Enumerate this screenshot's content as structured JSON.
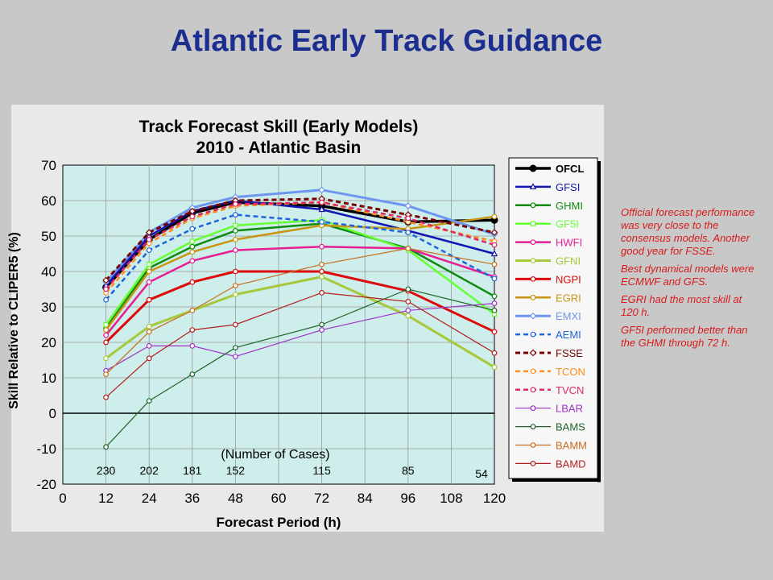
{
  "slide_title": "Atlantic Early Track Guidance",
  "notes": [
    "Official forecast performance was very close to the consensus models. Another  good year for FSSE.",
    "Best dynamical models were ECMWF and GFS.",
    "EGRI had the most skill at 120 h.",
    "GF5I performed better than the GHMI through 72 h."
  ],
  "chart_data": {
    "type": "line",
    "title": "Track Forecast Skill (Early Models)",
    "subtitle": "2010 - Atlantic Basin",
    "xlabel": "Forecast Period (h)",
    "ylabel": "Skill Relative to CLIPER5 (%)",
    "xlim": [
      0,
      120
    ],
    "ylim": [
      -20,
      70
    ],
    "xticks": [
      0,
      12,
      24,
      36,
      48,
      60,
      72,
      84,
      96,
      108,
      120
    ],
    "yticks": [
      -20,
      -10,
      0,
      10,
      20,
      30,
      40,
      50,
      60,
      70
    ],
    "grid": true,
    "plot_bg": "#cdeeea",
    "legend_placement": "right",
    "cases_label": "(Number of Cases)",
    "cases": [
      {
        "x": 12,
        "n": "230"
      },
      {
        "x": 24,
        "n": "202"
      },
      {
        "x": 36,
        "n": "181"
      },
      {
        "x": 48,
        "n": "152"
      },
      {
        "x": 72,
        "n": "115"
      },
      {
        "x": 96,
        "n": "85"
      },
      {
        "x": 120,
        "n": "54"
      }
    ],
    "x": [
      12,
      24,
      36,
      48,
      72,
      96,
      120
    ],
    "series": [
      {
        "name": "OFCL",
        "color": "#000000",
        "dash": "",
        "width": 3.5,
        "marker": "dot",
        "values": [
          35.5,
          49,
          56.5,
          59.5,
          58.5,
          54,
          54.5
        ]
      },
      {
        "name": "GFSI",
        "color": "#1414b4",
        "dash": "",
        "width": 2.5,
        "marker": "tri",
        "values": [
          36,
          50,
          57,
          60,
          57.5,
          51.5,
          45
        ]
      },
      {
        "name": "GHMI",
        "color": "#0f8a0f",
        "dash": "",
        "width": 2.5,
        "marker": "circle",
        "values": [
          24,
          41,
          47,
          51.5,
          53.5,
          46.5,
          33
        ]
      },
      {
        "name": "GF5I",
        "color": "#66ff33",
        "dash": "",
        "width": 2.5,
        "marker": "square",
        "values": [
          25,
          42,
          48.5,
          53,
          54.5,
          46,
          28
        ]
      },
      {
        "name": "HWFI",
        "color": "#e61e96",
        "dash": "",
        "width": 2.5,
        "marker": "circle",
        "values": [
          22,
          37,
          43,
          46,
          47,
          46.5,
          38.5
        ]
      },
      {
        "name": "GFNI",
        "color": "#a8c83c",
        "dash": "",
        "width": 3,
        "marker": "circle",
        "values": [
          15.5,
          24.5,
          29,
          33.5,
          38.5,
          27.5,
          13
        ]
      },
      {
        "name": "NGPI",
        "color": "#dc0a0a",
        "dash": "",
        "width": 3,
        "marker": "circle",
        "values": [
          20,
          32,
          37,
          40,
          40,
          34.5,
          23
        ]
      },
      {
        "name": "EGRI",
        "color": "#c89614",
        "dash": "",
        "width": 2.5,
        "marker": "circle",
        "values": [
          23.5,
          40,
          45.5,
          49,
          53,
          52,
          55.5
        ]
      },
      {
        "name": "EMXI",
        "color": "#6e96f0",
        "dash": "",
        "width": 3,
        "marker": "diamond",
        "values": [
          37,
          51,
          58,
          61,
          63,
          58.5,
          50.5
        ]
      },
      {
        "name": "AEMI",
        "color": "#1e64dc",
        "dash": "6 4",
        "width": 2.5,
        "marker": "circle",
        "values": [
          32,
          46,
          52,
          56,
          54,
          51,
          38
        ]
      },
      {
        "name": "FSSE",
        "color": "#780000",
        "dash": "6 4",
        "width": 3,
        "marker": "diamond",
        "values": [
          37.5,
          51,
          57,
          60,
          60.5,
          56,
          51
        ]
      },
      {
        "name": "TCON",
        "color": "#ff8c1e",
        "dash": "6 4",
        "width": 2.5,
        "marker": "circle",
        "values": [
          34,
          48,
          55,
          58.5,
          59.5,
          54,
          48.5
        ]
      },
      {
        "name": "TVCN",
        "color": "#dc2864",
        "dash": "6 4",
        "width": 2.5,
        "marker": "circle",
        "values": [
          35,
          49,
          55.5,
          59,
          59.5,
          55,
          47.5
        ]
      },
      {
        "name": "LBAR",
        "color": "#a032c8",
        "dash": "",
        "width": 1.2,
        "marker": "circle",
        "values": [
          12,
          19,
          19,
          16,
          23.5,
          29,
          31
        ]
      },
      {
        "name": "BAMS",
        "color": "#1e6428",
        "dash": "",
        "width": 1.2,
        "marker": "circle",
        "values": [
          -9.5,
          3.5,
          11,
          18.5,
          25,
          35,
          29
        ]
      },
      {
        "name": "BAMM",
        "color": "#c86e1e",
        "dash": "",
        "width": 1.2,
        "marker": "circle",
        "values": [
          11,
          23,
          29,
          36,
          42,
          46.5,
          42
        ]
      },
      {
        "name": "BAMD",
        "color": "#b41e1e",
        "dash": "",
        "width": 1.2,
        "marker": "circle",
        "values": [
          4.5,
          15.5,
          23.5,
          25,
          34,
          31.5,
          17
        ]
      }
    ]
  }
}
